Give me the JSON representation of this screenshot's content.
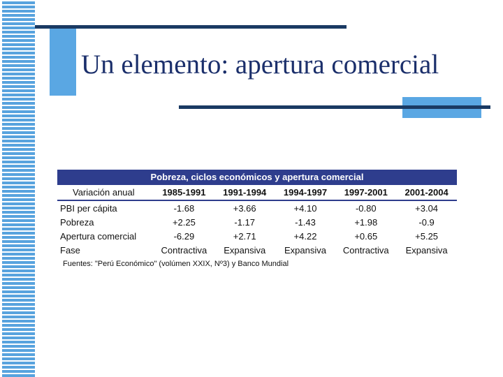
{
  "slide": {
    "title": "Un elemento: apertura comercial"
  },
  "table": {
    "title": "Pobreza, ciclos económicos y apertura comercial",
    "header_label": "Variación anual",
    "periods": [
      "1985-1991",
      "1991-1994",
      "1994-1997",
      "1997-2001",
      "2001-2004"
    ],
    "rows": [
      {
        "label": "PBI per cápita",
        "values": [
          "-1.68",
          "+3.66",
          "+4.10",
          "-0.80",
          "+3.04"
        ]
      },
      {
        "label": "Pobreza",
        "values": [
          "+2.25",
          "-1.17",
          "-1.43",
          "+1.98",
          "-0.9"
        ]
      },
      {
        "label": "Apertura comercial",
        "values": [
          "-6.29",
          "+2.71",
          "+4.22",
          "+0.65",
          "+5.25"
        ]
      },
      {
        "label": "Fase",
        "values": [
          "Contractiva",
          "Expansiva",
          "Expansiva",
          "Contractiva",
          "Expansiva"
        ]
      }
    ],
    "source": "Fuentes: \"Perú Económico\" (volúmen XXIX, Nº3) y Banco Mundial"
  },
  "colors": {
    "accent_blue": "#5aa7e3",
    "navy_line": "#1a3a63",
    "table_header": "#2e3d8d",
    "title_text": "#1b2f6b"
  }
}
